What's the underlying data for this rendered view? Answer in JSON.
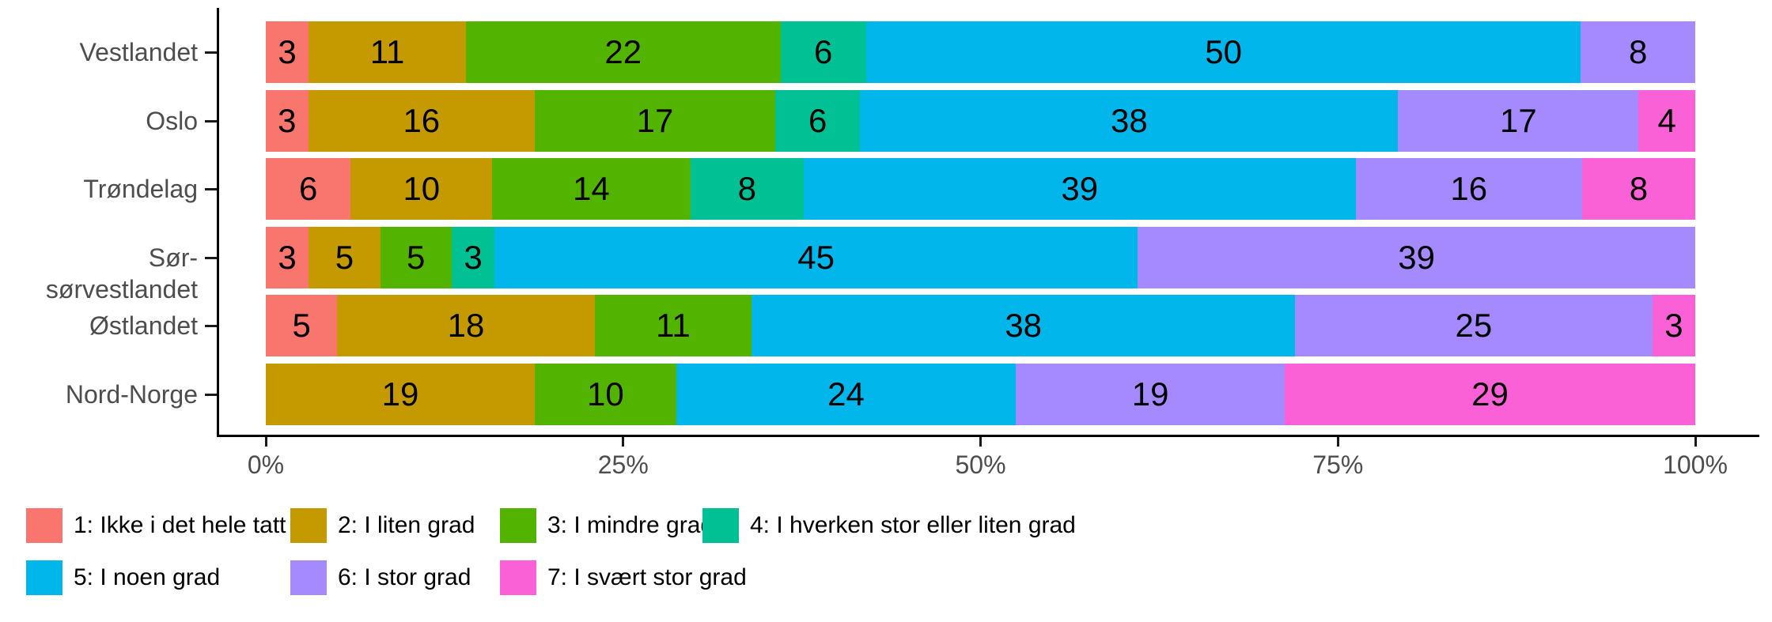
{
  "chart_data": {
    "type": "bar",
    "subtype": "horizontal-stacked-percent",
    "title": "",
    "categories": [
      "Vestlandet",
      "Oslo",
      "Trøndelag",
      "Sør-sørvestlandet",
      "Østlandet",
      "Nord-Norge"
    ],
    "series": [
      {
        "name": "1: Ikke i det hele tatt",
        "color": "#F8766D",
        "values": [
          3,
          3,
          6,
          3,
          5,
          0
        ]
      },
      {
        "name": "2: I liten grad",
        "color": "#C49A00",
        "values": [
          11,
          16,
          10,
          5,
          18,
          19
        ]
      },
      {
        "name": "3: I mindre grad",
        "color": "#53B400",
        "values": [
          22,
          17,
          14,
          5,
          11,
          10
        ]
      },
      {
        "name": "4: I hverken stor eller liten grad",
        "color": "#00C094",
        "values": [
          6,
          6,
          8,
          3,
          0,
          0
        ]
      },
      {
        "name": "5: I noen grad",
        "color": "#00B6EB",
        "values": [
          50,
          38,
          39,
          45,
          38,
          24
        ]
      },
      {
        "name": "6: I stor grad",
        "color": "#A58AFF",
        "values": [
          8,
          17,
          16,
          39,
          25,
          19
        ]
      },
      {
        "name": "7: I svært stor grad",
        "color": "#FB61D7",
        "values": [
          0,
          4,
          8,
          0,
          3,
          29
        ]
      }
    ],
    "x_ticks": [
      {
        "label": "0%",
        "value": 0
      },
      {
        "label": "25%",
        "value": 25
      },
      {
        "label": "50%",
        "value": 50
      },
      {
        "label": "75%",
        "value": 75
      },
      {
        "label": "100%",
        "value": 100
      }
    ],
    "xlabel": "",
    "ylabel": "",
    "xlim": [
      0,
      100
    ],
    "grid": false,
    "legend_position": "bottom",
    "legend_rows": [
      [
        0,
        1,
        2,
        3
      ],
      [
        4,
        5,
        6
      ]
    ],
    "axis_color": "#000000",
    "text_color": "#4d4d4d",
    "value_label_color": "#000000"
  }
}
